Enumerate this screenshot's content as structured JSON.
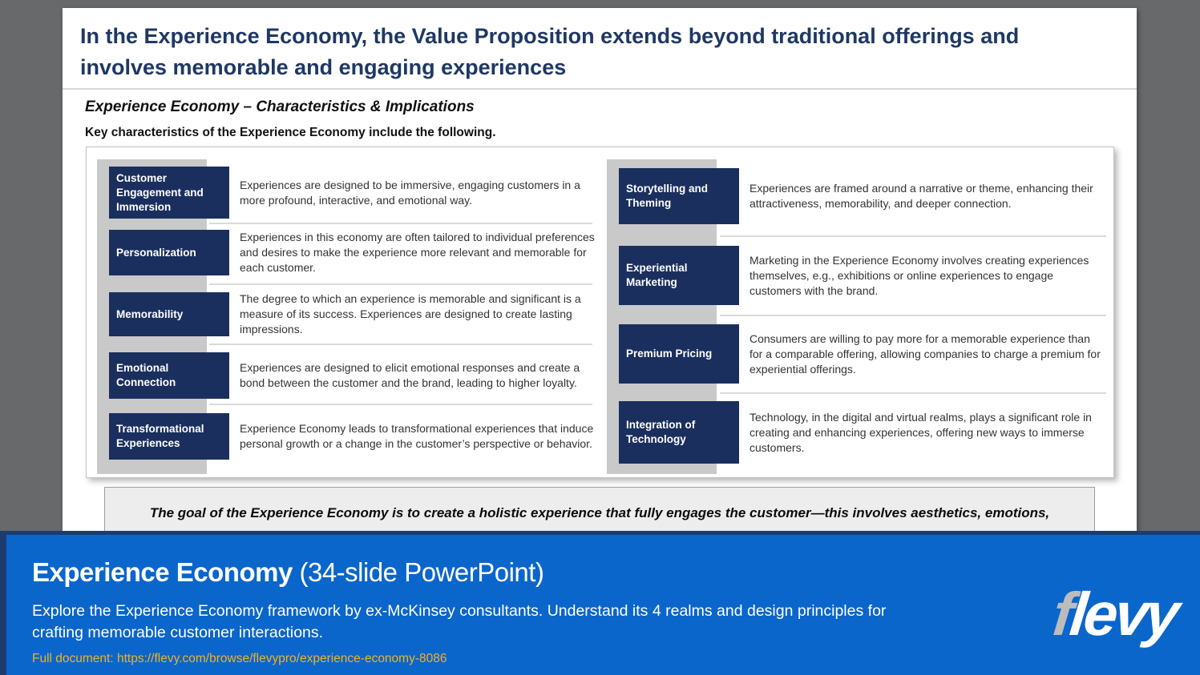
{
  "header": {
    "title": "In the Experience Economy, the Value Proposition extends beyond traditional offerings and involves memorable and engaging experiences",
    "subtitle": "Experience Economy – Characteristics & Implications",
    "lead": "Key characteristics of the Experience Economy include the following."
  },
  "characteristics": {
    "left": [
      {
        "label": "Customer Engagement and Immersion",
        "description": "Experiences are designed to be immersive, engaging customers in a more profound, interactive, and emotional way."
      },
      {
        "label": "Personalization",
        "description": "Experiences in this economy are often tailored to individual preferences and desires to make the experience more relevant and memorable for each customer."
      },
      {
        "label": "Memorability",
        "description": "The degree to which an experience is memorable and significant is a measure of its success. Experiences are designed to create lasting impressions."
      },
      {
        "label": "Emotional Connection",
        "description": "Experiences are designed to elicit emotional responses and create a bond between the customer and the brand, leading to higher loyalty."
      },
      {
        "label": "Transformational Experiences",
        "description": "Experience Economy leads to transformational experiences that induce personal growth or a change in the customer’s perspective or behavior."
      }
    ],
    "right": [
      {
        "label": "Storytelling and Theming",
        "description": "Experiences are framed around a narrative or theme, enhancing their attractiveness, memorability, and deeper connection."
      },
      {
        "label": "Experiential Marketing",
        "description": "Marketing in the Experience Economy involves creating experiences themselves, e.g., exhibitions or online experiences to engage customers with the brand."
      },
      {
        "label": "Premium Pricing",
        "description": "Consumers are willing to pay more for a memorable experience than for a comparable offering, allowing companies to charge a premium for experiential offerings."
      },
      {
        "label": "Integration of Technology",
        "description": "Technology, in the digital and virtual realms, plays a significant role in creating and enhancing experiences, offering new ways to immerse customers."
      }
    ]
  },
  "quote": "The goal of the Experience Economy is to create a holistic experience that fully engages the customer—this involves aesthetics, emotions, and creating a narrative around the offering.",
  "banner": {
    "title": "Experience Economy",
    "title_suffix": " (34-slide PowerPoint)",
    "description": "Explore the Experience Economy framework by ex-McKinsey consultants. Understand its 4 realms and design principles for crafting memorable customer interactions.",
    "link": "Full document: https://flevy.com/browse/flevypro/experience-economy-8086",
    "logo_f": "f",
    "logo_rest": "levy"
  },
  "colors": {
    "title_navy": "#1f3864",
    "box_navy": "#1b2f5e",
    "banner_blue": "#0a66cb",
    "banner_navy": "#1c3c6e",
    "link_gold": "#edb226",
    "band_gray": "#c9c9c9"
  }
}
